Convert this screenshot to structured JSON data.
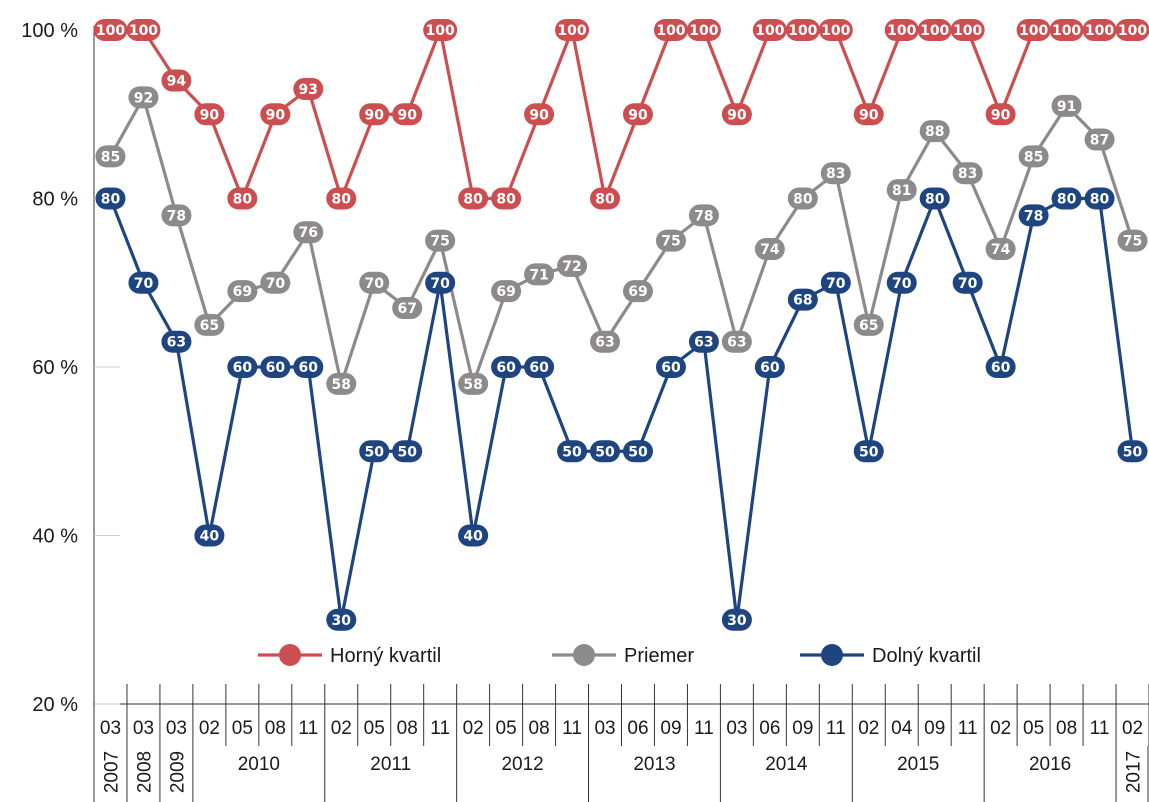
{
  "chart_data": {
    "type": "line",
    "categories": [
      "03",
      "03",
      "03",
      "02",
      "05",
      "08",
      "11",
      "02",
      "05",
      "08",
      "11",
      "02",
      "05",
      "08",
      "11",
      "03",
      "06",
      "09",
      "11",
      "03",
      "06",
      "09",
      "11",
      "02",
      "04",
      "09",
      "11",
      "02",
      "05",
      "08",
      "11",
      "02"
    ],
    "year_groups": [
      {
        "label": "2007",
        "start": 0,
        "end": 0,
        "rotated": true
      },
      {
        "label": "2008",
        "start": 1,
        "end": 1,
        "rotated": true
      },
      {
        "label": "2009",
        "start": 2,
        "end": 2,
        "rotated": true
      },
      {
        "label": "2010",
        "start": 3,
        "end": 6,
        "rotated": false
      },
      {
        "label": "2011",
        "start": 7,
        "end": 10,
        "rotated": false
      },
      {
        "label": "2012",
        "start": 11,
        "end": 14,
        "rotated": false
      },
      {
        "label": "2013",
        "start": 15,
        "end": 18,
        "rotated": false
      },
      {
        "label": "2014",
        "start": 19,
        "end": 22,
        "rotated": false
      },
      {
        "label": "2015",
        "start": 23,
        "end": 26,
        "rotated": false
      },
      {
        "label": "2016",
        "start": 27,
        "end": 30,
        "rotated": false
      },
      {
        "label": "2017",
        "start": 31,
        "end": 31,
        "rotated": true
      }
    ],
    "series": [
      {
        "name": "Horný kvartil",
        "color": "#cc4e50",
        "values": [
          100,
          100,
          94,
          90,
          80,
          90,
          93,
          80,
          90,
          90,
          100,
          80,
          80,
          90,
          100,
          80,
          90,
          100,
          100,
          90,
          100,
          100,
          100,
          90,
          100,
          100,
          100,
          90,
          100,
          100,
          100,
          100
        ]
      },
      {
        "name": "Priemer",
        "color": "#8c8a8a",
        "values": [
          85,
          92,
          78,
          65,
          69,
          70,
          76,
          58,
          70,
          67,
          75,
          58,
          69,
          71,
          72,
          63,
          69,
          75,
          78,
          63,
          74,
          80,
          83,
          65,
          81,
          88,
          83,
          74,
          85,
          91,
          87,
          75
        ]
      },
      {
        "name": "Dolný kvartil",
        "color": "#1f4581",
        "values": [
          80,
          70,
          63,
          40,
          60,
          60,
          60,
          30,
          50,
          50,
          70,
          40,
          60,
          60,
          50,
          50,
          50,
          60,
          63,
          30,
          60,
          68,
          70,
          50,
          70,
          80,
          70,
          60,
          78,
          80,
          80,
          50
        ]
      }
    ],
    "ylim": [
      20,
      100
    ],
    "yticks": [
      20,
      40,
      60,
      80,
      100
    ],
    "ytick_labels": [
      "20 %",
      "40 %",
      "60 %",
      "80 %",
      "100 %"
    ],
    "xlabel": "",
    "ylabel": "",
    "grid": false,
    "legend_position": "bottom-center"
  }
}
